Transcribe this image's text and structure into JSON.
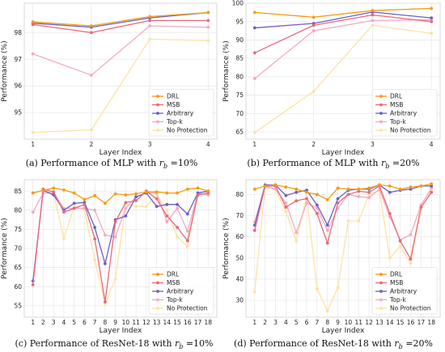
{
  "legend": [
    "DRL",
    "MSB",
    "Arbitrary",
    "Top-k",
    "No Protection"
  ],
  "colors": {
    "DRL": "#f39c12",
    "MSB": "#e8697a",
    "Arbitrary": "#6b5fc7",
    "Top-k": "#f2aac4",
    "No Protection": "#fde2a6"
  },
  "chart_data": [
    {
      "type": "line",
      "caption_prefix": "(a) Performance of MLP with ",
      "caption_var": "r",
      "caption_sub": "b",
      "caption_suffix": " =10%",
      "xlabel": "Layer Index",
      "ylabel": "Performance (%)",
      "x": [
        1,
        2,
        3,
        4
      ],
      "ylim": [
        94.0,
        99.1
      ],
      "yticks": [
        95,
        96,
        97,
        98
      ],
      "legend_position": "lower-right",
      "grid": true,
      "series": [
        {
          "name": "DRL",
          "values": [
            98.4,
            98.25,
            98.6,
            98.75
          ]
        },
        {
          "name": "MSB",
          "values": [
            98.3,
            98.0,
            98.45,
            98.45
          ]
        },
        {
          "name": "Arbitrary",
          "values": [
            98.35,
            98.2,
            98.55,
            98.75
          ]
        },
        {
          "name": "Top-k",
          "values": [
            97.2,
            96.4,
            98.25,
            98.2
          ]
        },
        {
          "name": "No Protection",
          "values": [
            94.25,
            94.35,
            97.75,
            97.7
          ]
        }
      ]
    },
    {
      "type": "line",
      "caption_prefix": "(b) Performance of MLP with ",
      "caption_var": "r",
      "caption_sub": "b",
      "caption_suffix": " =20%",
      "xlabel": "Layer Index",
      "ylabel": "Performance (%)",
      "x": [
        1,
        2,
        3,
        4
      ],
      "ylim": [
        63,
        100
      ],
      "yticks": [
        65,
        70,
        75,
        80,
        85,
        90,
        95,
        100
      ],
      "legend_position": "lower-right",
      "grid": true,
      "series": [
        {
          "name": "DRL",
          "values": [
            97.5,
            96.2,
            98.0,
            98.6
          ]
        },
        {
          "name": "MSB",
          "values": [
            86.5,
            94.0,
            96.8,
            95.0
          ]
        },
        {
          "name": "Arbitrary",
          "values": [
            93.3,
            94.5,
            97.6,
            96.0
          ]
        },
        {
          "name": "Top-k",
          "values": [
            79.5,
            92.5,
            95.3,
            95.5
          ]
        },
        {
          "name": "No Protection",
          "values": [
            64.8,
            76.0,
            94.0,
            91.8
          ]
        }
      ]
    },
    {
      "type": "line",
      "caption_prefix": "(c) Performance of ResNet-18 with ",
      "caption_var": "r",
      "caption_sub": "b",
      "caption_suffix": " =10%",
      "xlabel": "Layer Index",
      "ylabel": "Performance (%)",
      "x": [
        1,
        2,
        3,
        4,
        5,
        6,
        7,
        8,
        9,
        10,
        11,
        12,
        13,
        14,
        15,
        16,
        17,
        18
      ],
      "ylim": [
        52,
        88
      ],
      "yticks": [
        55,
        60,
        65,
        70,
        75,
        80,
        85
      ],
      "legend_position": "lower-right",
      "grid": true,
      "series": [
        {
          "name": "DRL",
          "values": [
            84.5,
            85.2,
            85.8,
            85.3,
            84.5,
            82.8,
            83.8,
            81.8,
            84.3,
            84.0,
            84.3,
            84.8,
            84.8,
            84.5,
            84.5,
            85.5,
            85.8,
            85.0
          ]
        },
        {
          "name": "MSB",
          "values": [
            60.5,
            85.5,
            84.8,
            79.5,
            80.5,
            81.5,
            72.5,
            56.0,
            77.0,
            82.0,
            82.5,
            85.0,
            83.0,
            78.5,
            75.5,
            72.0,
            84.0,
            84.5
          ]
        },
        {
          "name": "Arbitrary",
          "values": [
            61.5,
            85.2,
            84.0,
            80.0,
            81.8,
            82.0,
            75.5,
            66.0,
            77.5,
            78.5,
            83.5,
            84.5,
            81.0,
            81.5,
            81.5,
            79.0,
            84.5,
            85.0
          ]
        },
        {
          "name": "Top-k",
          "values": [
            79.5,
            84.5,
            84.5,
            80.5,
            80.5,
            80.5,
            80.0,
            73.5,
            73.0,
            80.5,
            83.5,
            84.5,
            84.5,
            77.0,
            80.5,
            74.5,
            84.5,
            84.0
          ]
        },
        {
          "name": "No Protection",
          "values": [
            84.5,
            85.0,
            84.5,
            72.5,
            81.0,
            80.0,
            67.0,
            55.5,
            62.0,
            81.5,
            81.0,
            81.0,
            84.0,
            80.0,
            73.0,
            70.5,
            84.0,
            84.0
          ]
        }
      ]
    },
    {
      "type": "line",
      "caption_prefix": "(d) Performance of ResNet-18 with ",
      "caption_var": "r",
      "caption_sub": "b",
      "caption_suffix": " =20%",
      "xlabel": "Layer Index",
      "ylabel": "Performance (%)",
      "x": [
        1,
        2,
        3,
        4,
        5,
        6,
        7,
        8,
        9,
        10,
        11,
        12,
        13,
        14,
        15,
        16,
        17,
        18
      ],
      "ylim": [
        22,
        87
      ],
      "yticks": [
        30,
        40,
        50,
        60,
        70,
        80
      ],
      "legend_position": "lower-right",
      "grid": true,
      "series": [
        {
          "name": "DRL",
          "values": [
            82.5,
            84.0,
            84.5,
            83.5,
            82.5,
            81.0,
            80.0,
            77.5,
            83.0,
            82.5,
            82.5,
            83.0,
            84.5,
            84.0,
            82.5,
            83.5,
            84.0,
            85.0
          ]
        },
        {
          "name": "MSB",
          "values": [
            63.0,
            84.0,
            84.0,
            74.0,
            77.0,
            78.0,
            71.0,
            57.0,
            76.0,
            80.0,
            81.5,
            81.0,
            84.0,
            71.0,
            58.0,
            49.5,
            74.0,
            81.0
          ]
        },
        {
          "name": "Arbitrary",
          "values": [
            65.5,
            84.5,
            84.5,
            79.5,
            81.0,
            82.0,
            75.0,
            65.5,
            78.0,
            82.0,
            82.5,
            82.5,
            84.5,
            81.0,
            82.0,
            82.5,
            84.0,
            84.0
          ]
        },
        {
          "name": "Top-k",
          "values": [
            67.0,
            84.0,
            82.5,
            76.0,
            62.0,
            76.0,
            73.5,
            63.0,
            73.5,
            80.0,
            79.0,
            78.5,
            82.5,
            69.5,
            58.5,
            61.0,
            75.0,
            83.0
          ]
        },
        {
          "name": "No Protection",
          "values": [
            34.0,
            83.5,
            82.5,
            72.0,
            58.0,
            79.0,
            35.5,
            25.0,
            36.0,
            67.5,
            67.5,
            80.0,
            82.0,
            50.0,
            55.5,
            47.5,
            73.0,
            82.0
          ]
        }
      ]
    }
  ]
}
